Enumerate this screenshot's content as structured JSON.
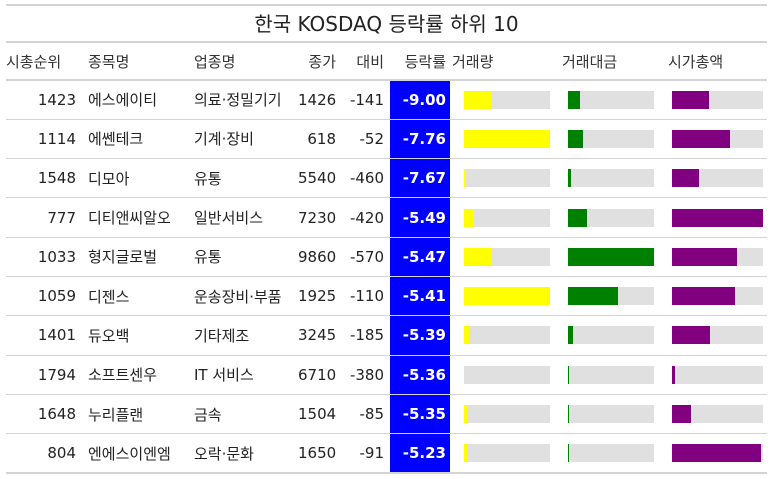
{
  "title": "한국 KOSDAQ 등락률 하위 10",
  "columns": [
    "시총순위",
    "종목명",
    "업종명",
    "종가",
    "대비",
    "등락률",
    "거래량",
    "거래대금",
    "시가총액"
  ],
  "colors": {
    "pct_bg": "#0000ff",
    "volume": "#ffff00",
    "value": "#008000",
    "marketcap": "#800080",
    "track": "#e0e0e0"
  },
  "chart_data": {
    "type": "table",
    "title": "한국 KOSDAQ 등락률 하위 10",
    "rows": [
      {
        "rank": "1423",
        "name": "에스에이티",
        "sector": "의료·정밀기기",
        "close": "1426",
        "change": "-141",
        "pct": "-9.00",
        "volume_bar": 0.33,
        "value_bar": 0.14,
        "marketcap_bar": 0.41
      },
      {
        "rank": "1114",
        "name": "에쎈테크",
        "sector": "기계·장비",
        "close": "618",
        "change": "-52",
        "pct": "-7.76",
        "volume_bar": 1.0,
        "value_bar": 0.18,
        "marketcap_bar": 0.64
      },
      {
        "rank": "1548",
        "name": "디모아",
        "sector": "유통",
        "close": "5540",
        "change": "-460",
        "pct": "-7.67",
        "volume_bar": 0.02,
        "value_bar": 0.03,
        "marketcap_bar": 0.3
      },
      {
        "rank": "777",
        "name": "디티앤씨알오",
        "sector": "일반서비스",
        "close": "7230",
        "change": "-420",
        "pct": "-5.49",
        "volume_bar": 0.1,
        "value_bar": 0.22,
        "marketcap_bar": 1.0
      },
      {
        "rank": "1033",
        "name": "형지글로벌",
        "sector": "유통",
        "close": "9860",
        "change": "-570",
        "pct": "-5.47",
        "volume_bar": 0.33,
        "value_bar": 1.0,
        "marketcap_bar": 0.71
      },
      {
        "rank": "1059",
        "name": "디젠스",
        "sector": "운송장비·부품",
        "close": "1925",
        "change": "-110",
        "pct": "-5.41",
        "volume_bar": 1.0,
        "value_bar": 0.58,
        "marketcap_bar": 0.69
      },
      {
        "rank": "1401",
        "name": "듀오백",
        "sector": "기타제조",
        "close": "3245",
        "change": "-185",
        "pct": "-5.39",
        "volume_bar": 0.06,
        "value_bar": 0.06,
        "marketcap_bar": 0.42
      },
      {
        "rank": "1794",
        "name": "소프트센우",
        "sector": "IT 서비스",
        "close": "6710",
        "change": "-380",
        "pct": "-5.36",
        "volume_bar": 0.0,
        "value_bar": 0.01,
        "marketcap_bar": 0.03
      },
      {
        "rank": "1648",
        "name": "누리플랜",
        "sector": "금속",
        "close": "1504",
        "change": "-85",
        "pct": "-5.35",
        "volume_bar": 0.03,
        "value_bar": 0.01,
        "marketcap_bar": 0.21
      },
      {
        "rank": "804",
        "name": "엔에스이엔엠",
        "sector": "오락·문화",
        "close": "1650",
        "change": "-91",
        "pct": "-5.23",
        "volume_bar": 0.04,
        "value_bar": 0.01,
        "marketcap_bar": 0.98
      }
    ]
  }
}
